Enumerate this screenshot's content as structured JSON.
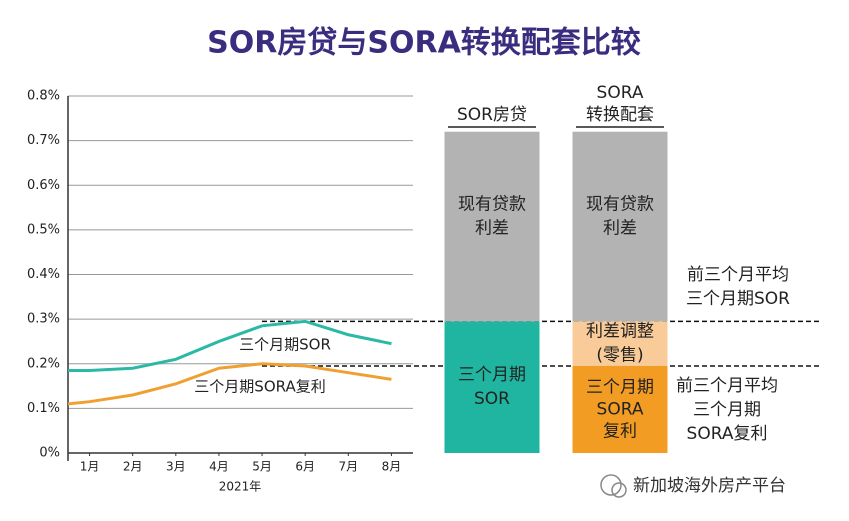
{
  "chart_data": {
    "type": "line",
    "title": "SOR房贷与SORA转换配套比较",
    "x_label": "2021年",
    "xlim": [
      0.5,
      8.5
    ],
    "xticks": [
      {
        "value": 1,
        "label": "1月"
      },
      {
        "value": 2,
        "label": "2月"
      },
      {
        "value": 3,
        "label": "3月"
      },
      {
        "value": 4,
        "label": "4月"
      },
      {
        "value": 5,
        "label": "5月"
      },
      {
        "value": 6,
        "label": "6月"
      },
      {
        "value": 7,
        "label": "7月"
      },
      {
        "value": 8,
        "label": "8月"
      }
    ],
    "ylim": [
      0,
      0.8
    ],
    "yticks": [
      {
        "value": 0,
        "label": "0%"
      },
      {
        "value": 0.1,
        "label": "0.1%"
      },
      {
        "value": 0.2,
        "label": "0.2%"
      },
      {
        "value": 0.3,
        "label": "0.3%"
      },
      {
        "value": 0.4,
        "label": "0.4%"
      },
      {
        "value": 0.5,
        "label": "0.5%"
      },
      {
        "value": 0.6,
        "label": "0.6%"
      },
      {
        "value": 0.7,
        "label": "0.7%"
      },
      {
        "value": 0.8,
        "label": "0.8%"
      }
    ],
    "grid": true,
    "x": [
      0.5,
      1,
      2,
      3,
      4,
      5,
      6,
      7,
      8
    ],
    "series": [
      {
        "name": "三个月期SOR",
        "color": "#2bb9a5",
        "values": [
          0.185,
          0.185,
          0.19,
          0.21,
          0.25,
          0.285,
          0.295,
          0.265,
          0.245
        ]
      },
      {
        "name": "三个月期SORA复利",
        "color": "#f0a032",
        "values": [
          0.11,
          0.115,
          0.13,
          0.155,
          0.19,
          0.2,
          0.195,
          0.18,
          0.165
        ]
      }
    ],
    "stacks": [
      {
        "header": [
          "SOR房贷"
        ],
        "segments": [
          {
            "label": [
              "三个月期",
              "SOR"
            ],
            "color": "#1fb5a0",
            "value": 0.295
          },
          {
            "label": [
              "现有贷款",
              "利差"
            ],
            "color": "#b3b3b3",
            "value": 0.425
          }
        ]
      },
      {
        "header": [
          "SORA",
          "转换配套"
        ],
        "segments": [
          {
            "label": [
              "三个月期",
              "SORA",
              "复利"
            ],
            "color": "#f39c23",
            "value": 0.195
          },
          {
            "label": [
              "利差调整",
              "(零售)"
            ],
            "color": "#f8cb98",
            "value": 0.1
          },
          {
            "label": [
              "现有贷款",
              "利差"
            ],
            "color": "#b3b3b3",
            "value": 0.425
          }
        ]
      }
    ],
    "reference_lines": [
      0.295,
      0.195
    ],
    "annotations": [
      [
        "前三个月平均",
        "三个月期SOR"
      ],
      [
        "前三个月平均",
        "三个月期",
        "SORA复利"
      ]
    ],
    "watermark": "新加坡海外房产平台"
  }
}
